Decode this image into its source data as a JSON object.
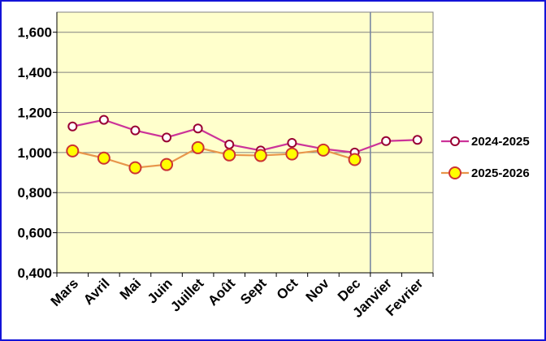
{
  "chart_data": {
    "type": "line",
    "title": "",
    "xlabel": "",
    "ylabel": "",
    "categories": [
      "Mars",
      "Avril",
      "Mai",
      "Juin",
      "Juillet",
      "Août",
      "Sept",
      "Oct",
      "Nov",
      "Dec",
      "Janvier",
      "Fevrier"
    ],
    "ylim": [
      0.4,
      1.7
    ],
    "yticks": [
      0.4,
      0.6,
      0.8,
      1.0,
      1.2,
      1.4,
      1.6
    ],
    "ytick_labels": [
      "0,400",
      "0,600",
      "0,800",
      "1,000",
      "1,200",
      "1,400",
      "1,600"
    ],
    "grid": "horizontal",
    "plot_background": "#ffffcc",
    "divider_after": "Dec",
    "legend_position": "right",
    "series": [
      {
        "name": "2024-2025",
        "color": "#cc3399",
        "marker_fill": "#ffffff",
        "marker_edge": "#990033",
        "values": [
          1.13,
          1.163,
          1.11,
          1.075,
          1.12,
          1.04,
          1.01,
          1.048,
          1.018,
          1.0,
          1.057,
          1.063
        ]
      },
      {
        "name": "2025-2026",
        "color": "#e8954a",
        "marker_fill": "#ffff00",
        "marker_edge": "#cc3333",
        "values": [
          1.008,
          0.972,
          0.924,
          0.94,
          1.024,
          0.988,
          0.985,
          0.993,
          1.012,
          0.965,
          null,
          null
        ]
      }
    ]
  }
}
